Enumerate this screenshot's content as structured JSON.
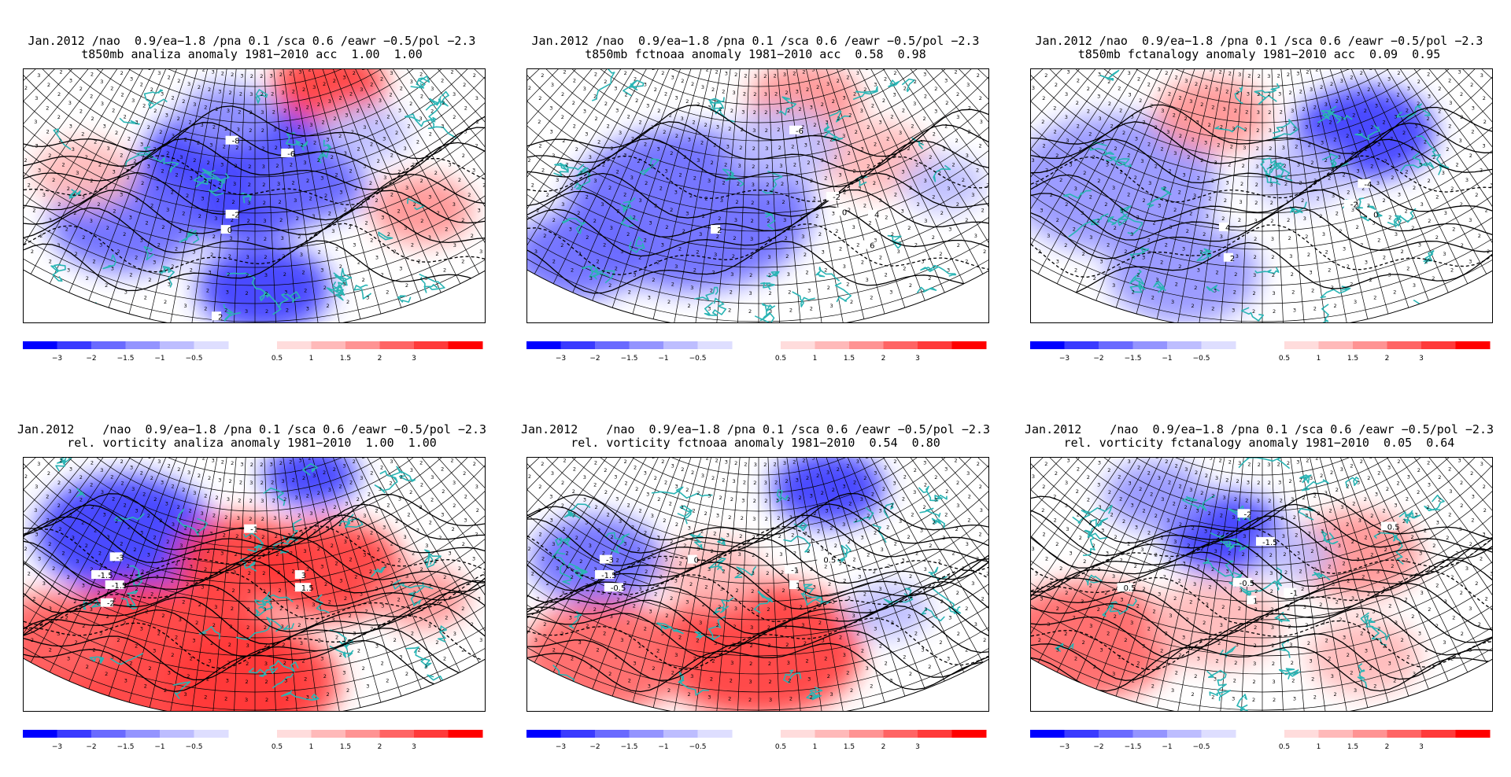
{
  "panels": [
    {
      "line1": "Jan.2012 /nao  0.9/ea−1.8 /pna 0.1 /sca 0.6 /eawr −0.5/pol −2.3",
      "line2": "t850mb analiza anomaly 1981−2010 acc  1.00  1.00",
      "labels": [
        "-8",
        "-6",
        "-2",
        "0",
        "2"
      ]
    },
    {
      "line1": "Jan.2012 /nao  0.9/ea−1.8 /pna 0.1 /sca 0.6 /eawr −0.5/pol −2.3",
      "line2": "t850mb fctnoaa anomaly 1981−2010 acc  0.58  0.98",
      "labels": [
        "-6",
        "-2",
        "0",
        "2",
        "4",
        "6"
      ]
    },
    {
      "line1": "Jan.2012 /nao  0.9/ea−1.8 /pna 0.1 /sca 0.6 /eawr −0.5/pol −2.3",
      "line2": "t850mb fctanalogy anomaly 1981−2010 acc  0.09  0.95",
      "labels": [
        "-4",
        "-2",
        "0",
        "2",
        "4"
      ]
    },
    {
      "line1": "Jan.2012    /nao  0.9/ea−1.8 /pna 0.1 /sca 0.6 /eawr −0.5/pol −2.3",
      "line2": "rel. vorticity analiza anomaly 1981−2010  1.00  1.00",
      "labels": [
        "-3",
        "-1.5",
        "-1.5",
        "-2",
        "3",
        "1.5",
        "-1"
      ]
    },
    {
      "line1": "Jan.2012    /nao  0.9/ea−1.8 /pna 0.1 /sca 0.6 /eawr −0.5/pol −2.3",
      "line2": "rel. vorticity fctnoaa anomaly 1981−2010  0.54  0.80",
      "labels": [
        "-3",
        "-1.5",
        "-0.5",
        "0",
        "0.5",
        "-1",
        "1"
      ]
    },
    {
      "line1": "Jan.2012    /nao  0.9/ea−1.8 /pna 0.1 /sca 0.6 /eawr −0.5/pol −2.3",
      "line2": "rel. vorticity fctanalogy anomaly 1981−2010  0.05  0.64",
      "labels": [
        "-2",
        "-1.5",
        "0.5",
        "-0.5",
        "-1",
        "0.5",
        "1"
      ]
    }
  ],
  "colorbar": {
    "neg_labels": [
      "−3",
      "−2",
      "−1.5",
      "−1",
      "−0.5"
    ],
    "pos_labels": [
      "0.5",
      "1",
      "1.5",
      "2",
      "3"
    ],
    "neg_colors": [
      "#0000ff",
      "#3a3aff",
      "#6a6aff",
      "#9494ff",
      "#bdbdff",
      "#dedeff"
    ],
    "pos_colors": [
      "#ffdcdc",
      "#ffb9b9",
      "#ff9393",
      "#ff6464",
      "#ff3a3a",
      "#ff0000"
    ]
  },
  "colors": {
    "coast": "#2ab4b4",
    "positive": "#ff3030",
    "negative": "#3030ff"
  }
}
